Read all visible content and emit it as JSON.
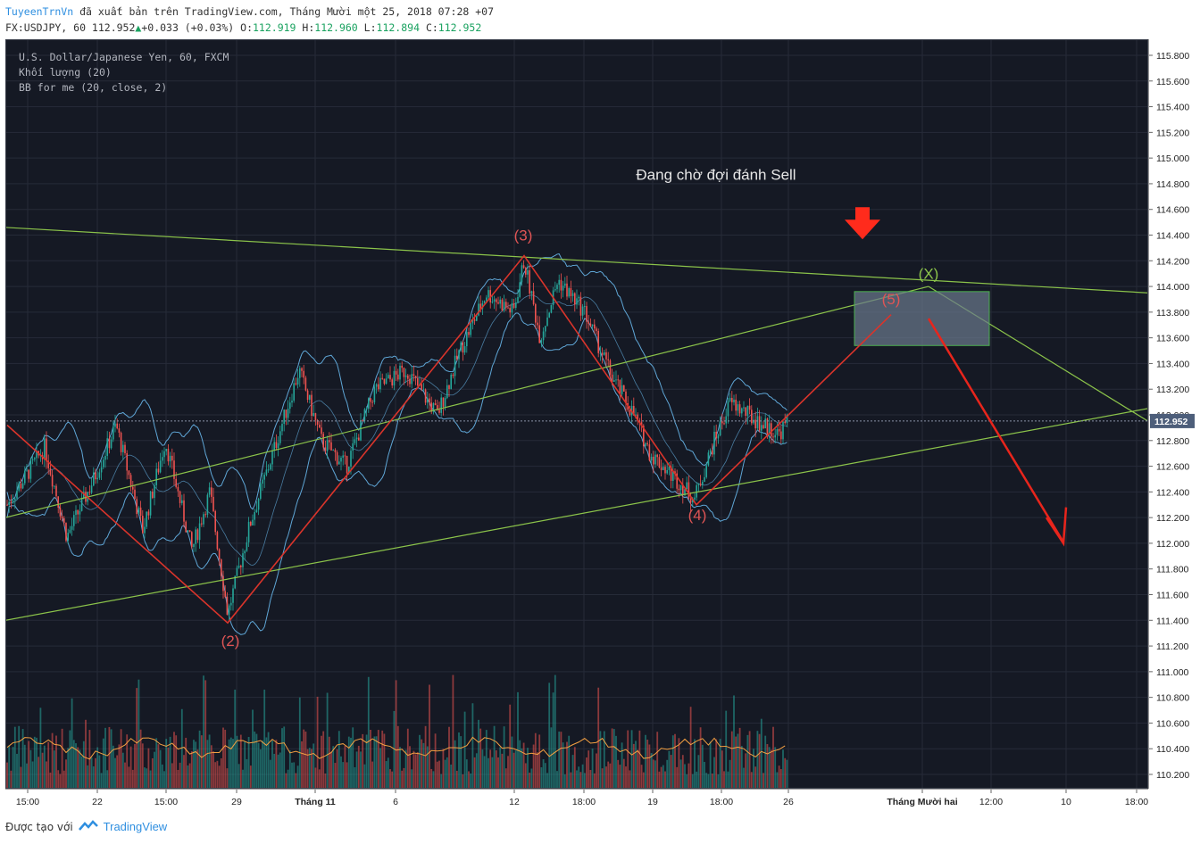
{
  "header": {
    "author": "TuyeenTrnVn",
    "published_text": "đã xuất bản trên TradingView.com, Tháng Mười một 25, 2018 07:28 +07",
    "symbol_line": "FX:USDJPY, 60 112.952",
    "change": "+0.033 (+0.03%)",
    "o_label": "O:",
    "o_value": "112.919",
    "h_label": "H:",
    "h_value": "112.960",
    "l_label": "L:",
    "l_value": "112.894",
    "c_label": "C:",
    "c_value": "112.952"
  },
  "legend": {
    "line1": "U.S. Dollar/Japanese Yen, 60, FXCM",
    "line2": "Khối lượng (20)",
    "line3": "BB for me (20, close, 2)"
  },
  "annotation": {
    "text": "Đang chờ đợi đánh Sell",
    "wave_labels": [
      "(2)",
      "(3)",
      "(4)",
      "(5)",
      "(X)"
    ]
  },
  "colors": {
    "background": "#151924",
    "wave_line": "#d9342b",
    "trend_line": "#8bc34a",
    "bollinger": "#5fa6d6",
    "volume_ma": "#f5a142",
    "candle_up": "#26a69a",
    "candle_down": "#ef5350",
    "target_box": "#6b7a8f",
    "target_box_border": "#4caf50",
    "current_price_bg": "#4d5e7a"
  },
  "footer": {
    "created_with": "Được tạo với",
    "brand": "TradingView"
  },
  "chart_data": {
    "type": "candlestick",
    "symbol": "FX:USDJPY",
    "timeframe": "60",
    "current_price": "112.952",
    "y_ticks": [
      "115.800",
      "115.600",
      "115.400",
      "115.200",
      "115.000",
      "114.800",
      "114.600",
      "114.400",
      "114.200",
      "114.000",
      "113.800",
      "113.600",
      "113.400",
      "113.200",
      "113.000",
      "112.800",
      "112.600",
      "112.400",
      "112.200",
      "112.000",
      "111.800",
      "111.600",
      "111.400",
      "111.200",
      "111.000",
      "110.800",
      "110.600",
      "110.400",
      "110.200"
    ],
    "x_ticks": [
      "15:00",
      "22",
      "15:00",
      "29",
      "Tháng 11",
      "6",
      "12",
      "18:00",
      "19",
      "18:00",
      "26",
      "Tháng Mười hai",
      "12:00",
      "10",
      "18:00"
    ],
    "ylim": [
      110.0,
      115.9
    ],
    "wave_points": [
      {
        "label": "(2)",
        "price": 111.38
      },
      {
        "label": "(3)",
        "price": 114.24
      },
      {
        "label": "(4)",
        "price": 112.3
      },
      {
        "label": "(5)",
        "price": 113.78
      },
      {
        "label": "(X)",
        "price": 114.0
      }
    ],
    "target_zone": {
      "price_high": 113.96,
      "price_low": 113.54
    },
    "grid": true
  }
}
